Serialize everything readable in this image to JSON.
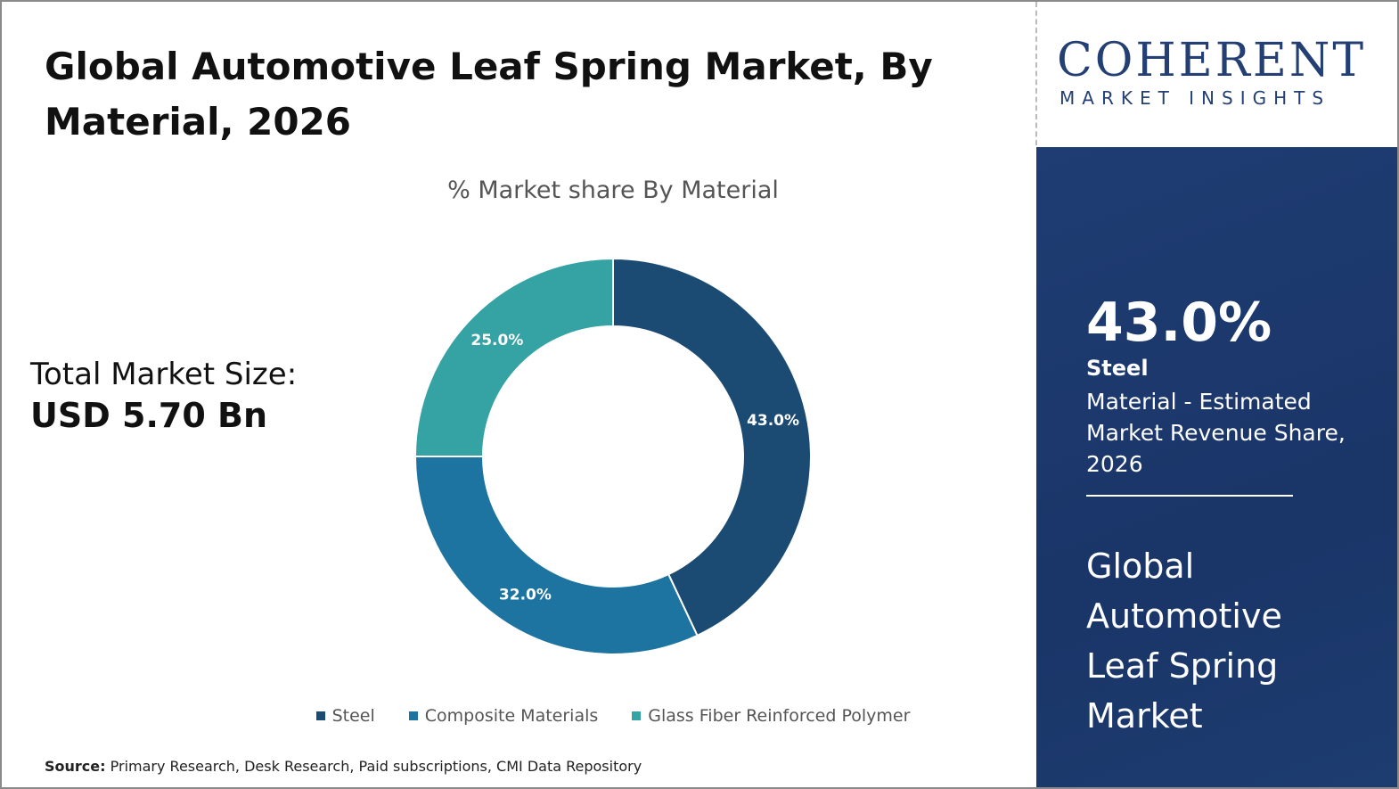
{
  "header": {
    "title": "Global Automotive Leaf Spring Market, By Material, 2026"
  },
  "logo": {
    "name": "COHERENT",
    "tagline": "MARKET INSIGHTS"
  },
  "summary": {
    "label": "Total Market Size:",
    "value": "USD 5.70 Bn"
  },
  "chart_data": {
    "type": "donut",
    "subtitle": "% Market share By Material",
    "categories": [
      "Steel",
      "Composite Materials",
      "Glass Fiber Reinforced Polymer"
    ],
    "values": [
      43,
      32,
      25
    ],
    "value_labels": [
      "43.0%",
      "32.0%",
      "25.0%"
    ],
    "colors": [
      "#1b4a73",
      "#1e74a0",
      "#35a2a4"
    ],
    "legend": "bottom"
  },
  "panel": {
    "value": "43.0%",
    "segment": "Steel",
    "description": "Material - Estimated Market Revenue Share, 2026",
    "market": "Global Automotive Leaf Spring Market"
  },
  "source": {
    "label": "Source:",
    "text": "Primary Research, Desk Research, Paid subscriptions, CMI Data Repository"
  }
}
